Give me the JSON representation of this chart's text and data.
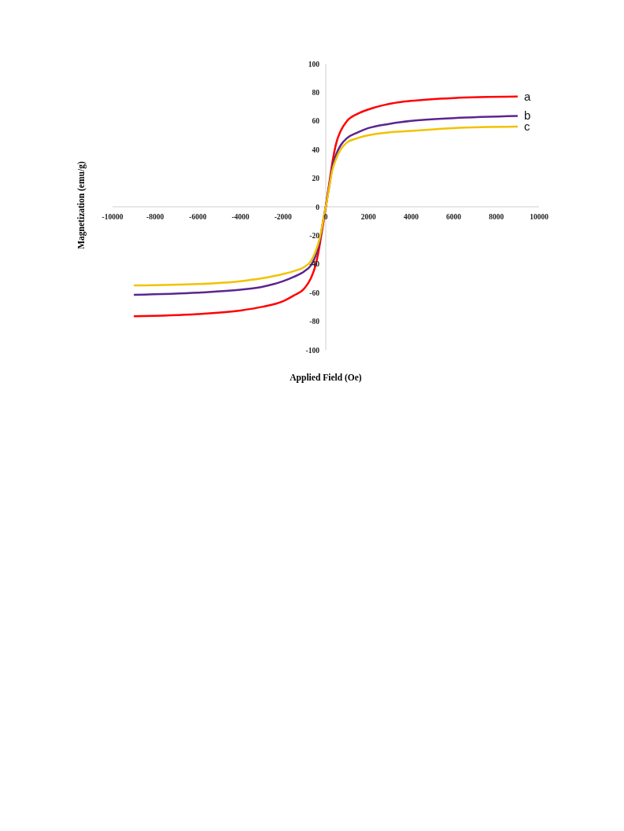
{
  "chart_data": {
    "type": "line",
    "xlabel": "Applied Field (Oe)",
    "ylabel": "Magnetization (emu/g)",
    "x": [
      -9000,
      -6000,
      -4000,
      -3000,
      -2000,
      -1500,
      -1000,
      -700,
      -500,
      -300,
      -200,
      -100,
      0,
      100,
      200,
      300,
      500,
      700,
      1000,
      1500,
      2000,
      3000,
      4000,
      6000,
      9000
    ],
    "series": [
      {
        "name": "a",
        "color": "#ff0000",
        "values": [
          -76.5,
          -75,
          -72.5,
          -70,
          -66,
          -62,
          -57,
          -50,
          -42,
          -28,
          -19,
          -10,
          0,
          10,
          20,
          30,
          45,
          53,
          60,
          65,
          68,
          72,
          74,
          76,
          77
        ]
      },
      {
        "name": "b",
        "color": "#5b2590",
        "values": [
          -61.5,
          -60,
          -58,
          -56,
          -52,
          -49,
          -45,
          -41,
          -35,
          -25,
          -17,
          -8,
          0,
          9,
          18,
          27,
          37,
          43,
          48,
          52,
          55,
          58,
          60,
          62,
          63.5
        ]
      },
      {
        "name": "c",
        "color": "#f2c200",
        "values": [
          -55,
          -54,
          -52,
          -50,
          -47,
          -45,
          -42,
          -38,
          -32,
          -23,
          -16,
          -8,
          0,
          8,
          17,
          25,
          34,
          40,
          45,
          48,
          50,
          52,
          53,
          55,
          56
        ]
      }
    ],
    "xlim": [
      -10000,
      10000
    ],
    "xticks": [
      -10000,
      -8000,
      -6000,
      -4000,
      -2000,
      0,
      2000,
      4000,
      6000,
      8000,
      10000
    ],
    "ylim": [
      -100,
      100
    ],
    "yticks": [
      -100,
      -80,
      -60,
      -40,
      -20,
      0,
      20,
      40,
      60,
      80,
      100
    ],
    "grid": false,
    "legend": false,
    "marker": "none",
    "line_style": "solid"
  }
}
